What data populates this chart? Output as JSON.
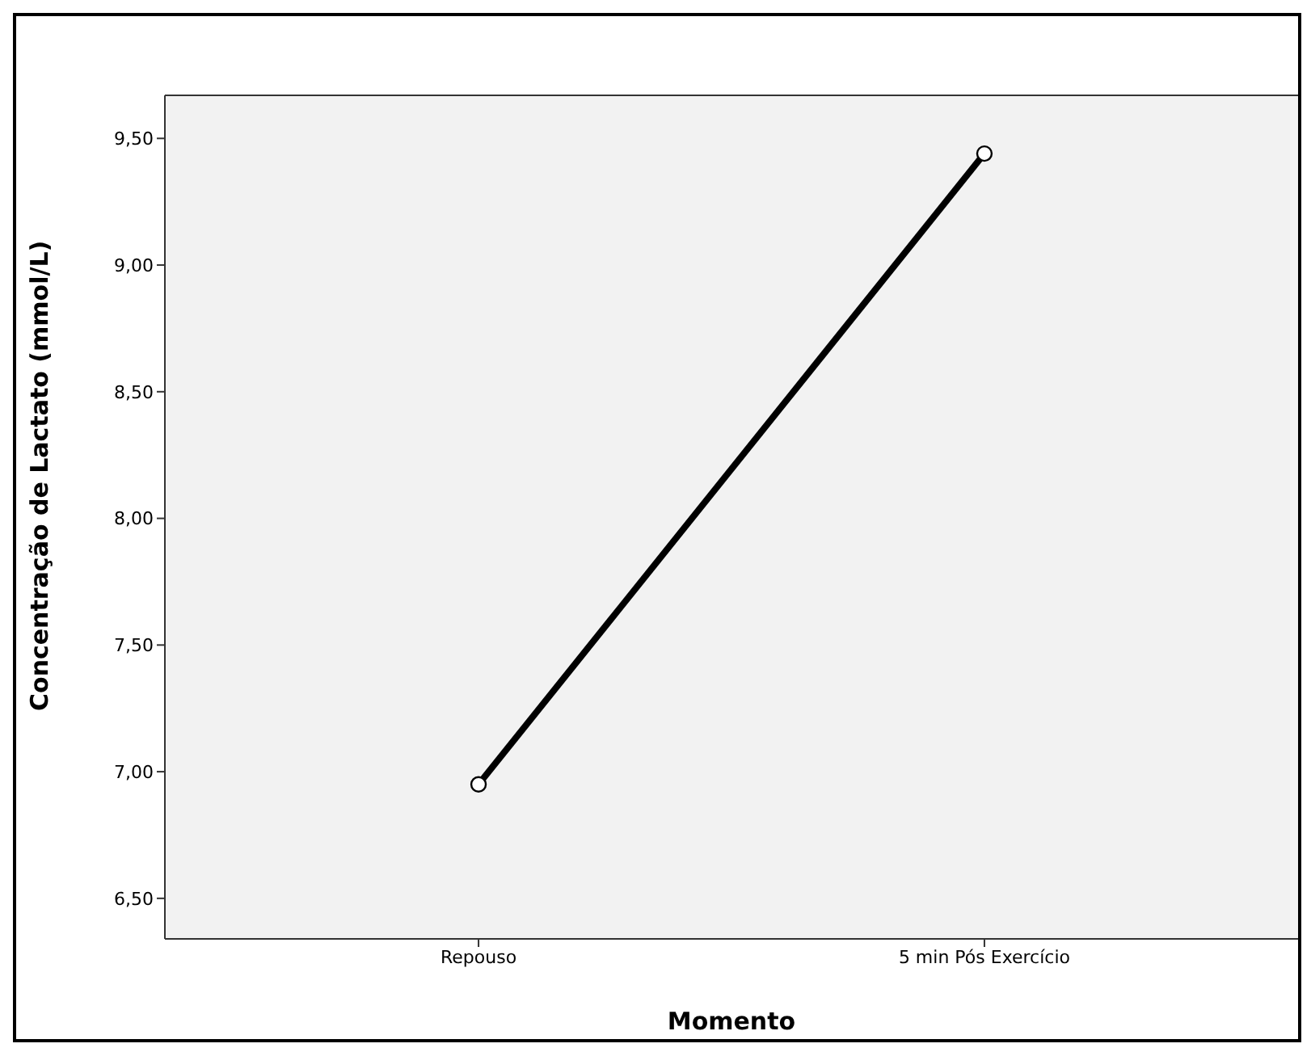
{
  "chart_data": {
    "type": "line",
    "xlabel": "Momento",
    "ylabel": "Concentração de Lactato (mmol/L)",
    "categories": [
      "Repouso",
      "5 min Pós Exercício"
    ],
    "series": [
      {
        "color": "#000000",
        "values": [
          6.95,
          9.44
        ]
      }
    ],
    "ylim": [
      6.34,
      9.67
    ],
    "yticks": [
      {
        "value": 6.5,
        "label": "6,50"
      },
      {
        "value": 7,
        "label": "7,00"
      },
      {
        "value": 7.5,
        "label": "7,50"
      },
      {
        "value": 8,
        "label": "8,00"
      },
      {
        "value": 8.5,
        "label": "8,50"
      },
      {
        "value": 9,
        "label": "9,00"
      },
      {
        "value": 9.5,
        "label": "9,50"
      }
    ],
    "marker": "circle",
    "line_style": "solid"
  }
}
